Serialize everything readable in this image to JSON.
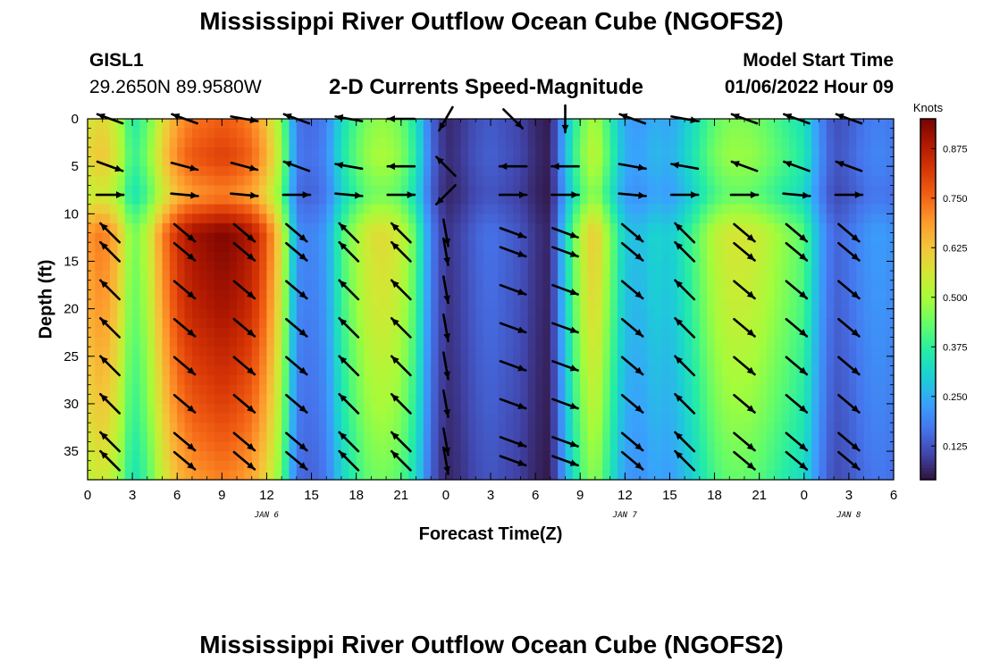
{
  "header": {
    "title": "Mississippi River Outflow Ocean Cube (NGOFS2)",
    "station": "GISL1",
    "coords": "29.2650N  89.9580W",
    "subtitle": "2-D Currents Speed-Magnitude",
    "model_start_label": "Model Start Time",
    "model_start_value": "01/06/2022 Hour 09"
  },
  "footer": {
    "title": "Mississippi River Outflow Ocean Cube (NGOFS2)"
  },
  "chart_data": {
    "type": "heatmap",
    "title": "2-D Currents Speed-Magnitude",
    "xlabel": "Forecast Time(Z)",
    "ylabel": "Depth (ft)",
    "xlim": [
      0,
      54
    ],
    "ylim": [
      0,
      38
    ],
    "y_inverted": true,
    "x_tick_values": [
      0,
      3,
      6,
      9,
      12,
      15,
      18,
      21,
      24,
      27,
      30,
      33,
      36,
      39,
      42,
      45,
      48,
      51,
      54
    ],
    "x_tick_labels": [
      "0",
      "3",
      "6",
      "9",
      "12",
      "15",
      "18",
      "21",
      "0",
      "3",
      "6",
      "9",
      "12",
      "15",
      "18",
      "21",
      "0",
      "3",
      "6"
    ],
    "y_ticks": [
      0,
      5,
      10,
      15,
      20,
      25,
      30,
      35
    ],
    "date_labels": [
      {
        "x": 12,
        "text": "JAN 6"
      },
      {
        "x": 36,
        "text": "JAN 7"
      },
      {
        "x": 51,
        "text": "JAN 8"
      }
    ],
    "colorbar": {
      "label": "Knots",
      "range": [
        0.04,
        0.95
      ],
      "ticks": [
        0.125,
        0.25,
        0.375,
        0.5,
        0.625,
        0.75,
        0.875
      ],
      "tick_labels": [
        "0.125",
        "0.250",
        "0.375",
        "0.500",
        "0.625",
        "0.750",
        "0.875"
      ]
    },
    "color_scale": [
      "#30123b",
      "#4145ab",
      "#4675ed",
      "#39a2fc",
      "#1bcfd4",
      "#24eca6",
      "#61fc6c",
      "#a4fc3b",
      "#d1e834",
      "#f3c63a",
      "#fe9b2d",
      "#f36315",
      "#d93806",
      "#b11901",
      "#7a0403"
    ],
    "speed_profile": {
      "hours": [
        0,
        1,
        2,
        3,
        4,
        5,
        6,
        7,
        8,
        9,
        10,
        11,
        12,
        13,
        14,
        15,
        16,
        17,
        18,
        19,
        20,
        21,
        22,
        23,
        24,
        25,
        26,
        27,
        28,
        29,
        30,
        31,
        32,
        33,
        34,
        35,
        36,
        37,
        38,
        39,
        40,
        41,
        42,
        43,
        44,
        45,
        46,
        47,
        48,
        49,
        50,
        51,
        52,
        53,
        54
      ],
      "speed_knots": [
        0.66,
        0.7,
        0.62,
        0.42,
        0.5,
        0.68,
        0.8,
        0.86,
        0.88,
        0.9,
        0.88,
        0.84,
        0.74,
        0.55,
        0.2,
        0.18,
        0.22,
        0.38,
        0.48,
        0.55,
        0.56,
        0.52,
        0.4,
        0.18,
        0.08,
        0.1,
        0.14,
        0.16,
        0.14,
        0.12,
        0.08,
        0.06,
        0.3,
        0.5,
        0.6,
        0.44,
        0.28,
        0.26,
        0.3,
        0.28,
        0.34,
        0.42,
        0.5,
        0.54,
        0.54,
        0.52,
        0.48,
        0.44,
        0.4,
        0.24,
        0.14,
        0.16,
        0.2,
        0.22,
        0.2
      ],
      "depth_factors": [
        {
          "depth": 0,
          "factor": 0.85
        },
        {
          "depth": 4,
          "factor": 0.9
        },
        {
          "depth": 8,
          "factor": 0.8
        },
        {
          "depth": 12,
          "factor": 1.05
        },
        {
          "depth": 20,
          "factor": 1.0
        },
        {
          "depth": 30,
          "factor": 0.9
        },
        {
          "depth": 38,
          "factor": 0.8
        }
      ]
    },
    "vector_field": {
      "x_hours": [
        1.5,
        6.5,
        10.5,
        14.0,
        17.5,
        21.0,
        24.0,
        28.5,
        32.0,
        36.5,
        40.0,
        44.0,
        47.5,
        51.0
      ],
      "depths_ft": [
        0,
        5,
        8,
        12,
        14,
        18,
        22,
        26,
        30,
        34,
        36
      ],
      "surface_angles_deg": [
        200,
        200,
        10,
        200,
        190,
        180,
        120,
        45,
        90,
        200,
        10,
        200,
        200,
        200
      ],
      "upper_angles_deg": [
        20,
        15,
        15,
        200,
        190,
        180,
        225,
        180,
        180,
        10,
        190,
        200,
        200,
        200
      ],
      "interface_angles_deg": [
        0,
        5,
        5,
        0,
        5,
        0,
        135,
        0,
        0,
        5,
        0,
        0,
        5,
        0
      ],
      "deep_angles_deg": [
        225,
        40,
        40,
        40,
        225,
        225,
        80,
        20,
        20,
        40,
        225,
        40,
        40,
        40
      ]
    }
  }
}
